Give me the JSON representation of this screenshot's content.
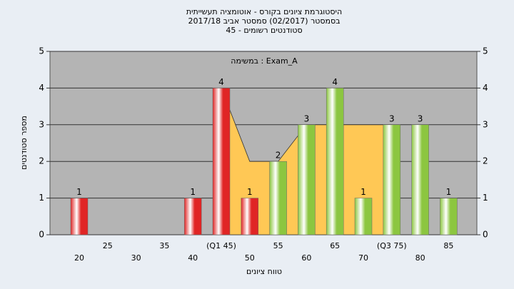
{
  "chart_data": {
    "type": "bar",
    "title": "היסטוגרמת ציונים בקורס - אוטומציה תעשייתית",
    "subtitle": "בסמסטר  (02/2017)  סמסטר אביב 2017/18",
    "subtitle2": "סטודנטים רשומים - 45",
    "annotation": "במשימה : Exam_A",
    "x_label": "טווח ציונים",
    "y_label": "מספר סטודנטים",
    "categories": [
      "20",
      "25",
      "30",
      "35",
      "40",
      "(Q1 45)",
      "50",
      "55",
      "60",
      "65",
      "70",
      "(Q3 75)",
      "80",
      "85"
    ],
    "values": [
      1,
      0,
      0,
      0,
      1,
      4,
      1,
      2,
      3,
      4,
      1,
      3,
      3,
      1
    ],
    "colors": [
      "#e02525",
      "#e02525",
      "#e02525",
      "#e02525",
      "#e02525",
      "#e02525",
      "#e02525",
      "#8cc640",
      "#8cc640",
      "#8cc640",
      "#8cc640",
      "#8cc640",
      "#8cc640",
      "#8cc640"
    ],
    "area": {
      "color": "#ffc855",
      "values": [
        null,
        null,
        null,
        null,
        null,
        4,
        2,
        2,
        3,
        3,
        3,
        3,
        null,
        null
      ]
    },
    "ylim": [
      0,
      5
    ],
    "yticks": [
      0,
      1,
      2,
      3,
      4,
      5
    ],
    "grid": true
  }
}
